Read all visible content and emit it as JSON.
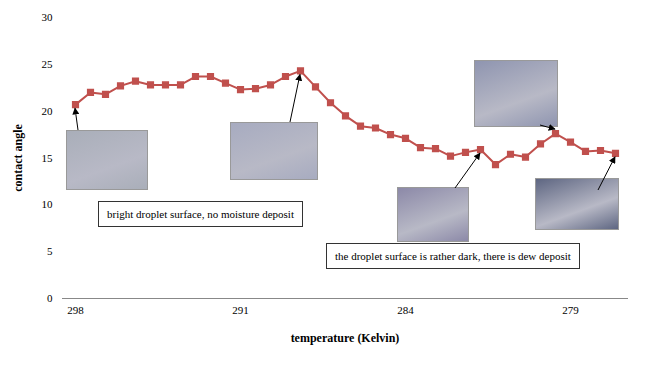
{
  "chart_data": {
    "type": "line",
    "x_label": "temperature (Kelvin)",
    "y_label": "contact angle",
    "categories": [
      "298",
      null,
      null,
      null,
      null,
      null,
      null,
      null,
      null,
      null,
      null,
      "291",
      null,
      null,
      null,
      null,
      null,
      null,
      null,
      null,
      null,
      null,
      "284",
      null,
      null,
      null,
      null,
      null,
      null,
      null,
      null,
      null,
      null,
      "279",
      null,
      null,
      null
    ],
    "values": [
      20.7,
      22,
      21.8,
      22.7,
      23.2,
      22.8,
      22.8,
      22.8,
      23.7,
      23.7,
      23,
      22.3,
      22.4,
      22.8,
      23.7,
      24.3,
      22.6,
      20.9,
      19.5,
      18.4,
      18.2,
      17.5,
      17.1,
      16.1,
      16,
      15.2,
      15.6,
      15.9,
      14.3,
      15.4,
      15.1,
      16.5,
      17.6,
      16.7,
      15.7,
      15.8,
      15.5
    ],
    "color": "#c0504d",
    "marker": "square",
    "ylim": [
      0,
      30
    ],
    "yticks": [
      0,
      5,
      10,
      15,
      20,
      25,
      30
    ],
    "grid": false,
    "annotations": [
      {
        "text": "bright droplet surface, no moisture deposit"
      },
      {
        "text": "the droplet surface is rather dark, there is dew deposit"
      }
    ]
  }
}
